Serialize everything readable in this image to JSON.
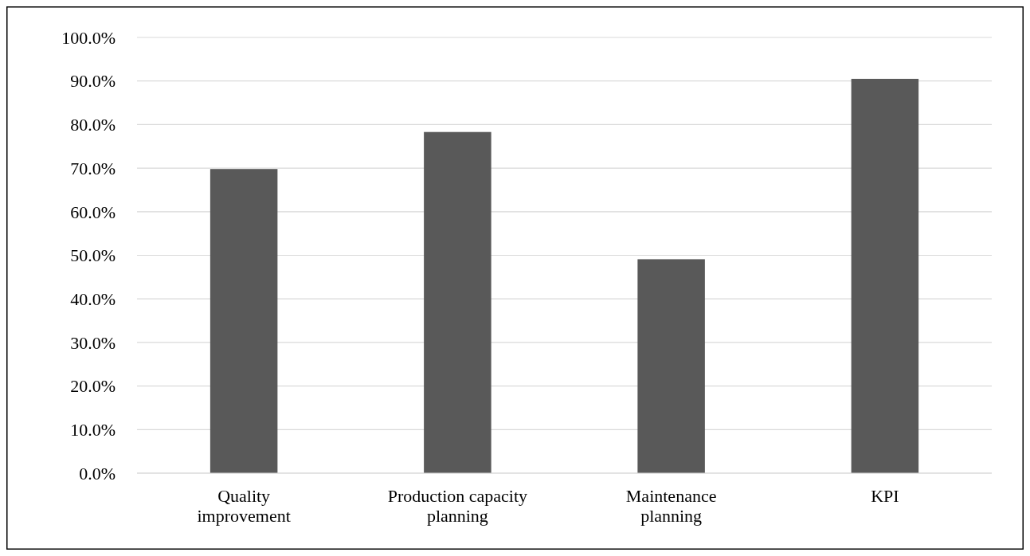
{
  "chart_data": {
    "type": "bar",
    "categories": [
      "Quality improvement",
      "Production capacity planning",
      "Maintenance planning",
      "KPI"
    ],
    "values": [
      69.8,
      78.3,
      49.1,
      90.5
    ],
    "color": "#595959",
    "ylim": [
      0,
      100
    ],
    "yticks": [
      {
        "value": 0,
        "label": "0.0%"
      },
      {
        "value": 10,
        "label": "10.0%"
      },
      {
        "value": 20,
        "label": "20.0%"
      },
      {
        "value": 30,
        "label": "30.0%"
      },
      {
        "value": 40,
        "label": "40.0%"
      },
      {
        "value": 50,
        "label": "50.0%"
      },
      {
        "value": 60,
        "label": "60.0%"
      },
      {
        "value": 70,
        "label": "70.0%"
      },
      {
        "value": 80,
        "label": "80.0%"
      },
      {
        "value": 90,
        "label": "90.0%"
      },
      {
        "value": 100,
        "label": "100.0%"
      }
    ],
    "grid": "y"
  }
}
